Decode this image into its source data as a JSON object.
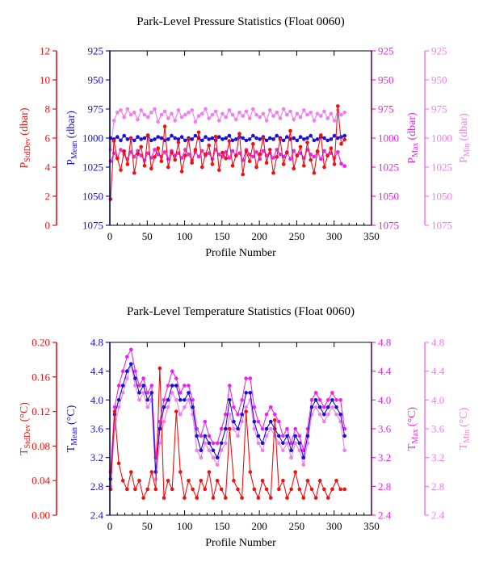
{
  "colors": {
    "stddev": "#ee1111",
    "mean": "#1a10d6",
    "max": "#ee22ee",
    "min": "#f07ef0",
    "frame": "#000000"
  },
  "chart_data": [
    {
      "type": "line",
      "title": "Park-Level Pressure Statistics (Float 0060)",
      "xlabel": "Profile Number",
      "xlim": [
        0,
        350
      ],
      "xticks": [
        "0",
        "50",
        "100",
        "150",
        "200",
        "250",
        "300",
        "350"
      ],
      "axes": [
        {
          "side": "left",
          "position": "outer",
          "main": "P",
          "sub": "StdDev",
          "unit": "(dbar)",
          "color_key": "stddev",
          "range": [
            0,
            12
          ],
          "reversed": false,
          "ticks": [
            "0",
            "2",
            "4",
            "6",
            "8",
            "10",
            "12"
          ]
        },
        {
          "side": "left",
          "position": "inner",
          "main": "P",
          "sub": "Mean",
          "unit": "(dbar)",
          "color_key": "mean",
          "range": [
            925,
            1075
          ],
          "reversed": true,
          "ticks": [
            "925",
            "950",
            "975",
            "1000",
            "1025",
            "1050",
            "1075"
          ]
        },
        {
          "side": "right",
          "position": "inner",
          "main": "P",
          "sub": "Max",
          "unit": "(dbar)",
          "color_key": "max",
          "range": [
            925,
            1075
          ],
          "reversed": true,
          "ticks": [
            "925",
            "950",
            "975",
            "1000",
            "1025",
            "1050",
            "1075"
          ]
        },
        {
          "side": "right",
          "position": "outer",
          "main": "P",
          "sub": "Min",
          "unit": "(dbar)",
          "color_key": "min",
          "range": [
            925,
            1075
          ],
          "reversed": true,
          "ticks": [
            "925",
            "950",
            "975",
            "1000",
            "1025",
            "1050",
            "1075"
          ]
        }
      ],
      "series": [
        {
          "axis": 3,
          "color_key": "min",
          "values": [
            1010,
            985,
            978,
            976,
            982,
            975,
            980,
            978,
            984,
            976,
            980,
            982,
            978,
            975,
            986,
            980,
            977,
            983,
            979,
            985,
            976,
            982,
            980,
            978,
            976,
            986,
            981,
            979,
            975,
            983,
            980,
            977,
            985,
            979,
            982,
            976,
            980,
            984,
            978,
            981,
            977,
            983,
            975,
            980,
            982,
            979,
            985,
            976,
            981,
            978,
            983,
            975,
            980,
            977,
            984,
            979,
            982,
            976,
            980,
            978,
            985,
            979,
            981,
            977,
            983,
            979,
            985,
            976,
            980,
            978
          ]
        },
        {
          "axis": 2,
          "color_key": "max",
          "values": [
            1020,
            1013,
            1017,
            1010,
            1014,
            1018,
            1012,
            1016,
            1011,
            1015,
            1019,
            1013,
            1017,
            1010,
            1014,
            1016,
            1012,
            1018,
            1011,
            1015,
            1013,
            1017,
            1010,
            1014,
            1019,
            1012,
            1016,
            1011,
            1015,
            1013,
            1018,
            1010,
            1014,
            1016,
            1012,
            1017,
            1011,
            1015,
            1013,
            1019,
            1010,
            1014,
            1016,
            1012,
            1018,
            1011,
            1015,
            1013,
            1017,
            1010,
            1014,
            1016,
            1012,
            1018,
            1011,
            1015,
            1013,
            1017,
            1010,
            1014,
            1016,
            1012,
            1018,
            1011,
            1015,
            1013,
            1017,
            1012,
            1022,
            1024
          ]
        },
        {
          "axis": 1,
          "color_key": "mean",
          "values": [
            1000,
            1001,
            999,
            1002,
            998,
            1001,
            1000,
            1002,
            999,
            1001,
            1000,
            998,
            1002,
            1001,
            999,
            1000,
            1002,
            1001,
            998,
            1000,
            1001,
            999,
            1002,
            1000,
            1001,
            998,
            1000,
            1002,
            999,
            1001,
            1000,
            1002,
            999,
            1001,
            1000,
            998,
            1002,
            1001,
            999,
            1000,
            1002,
            1001,
            998,
            1000,
            1001,
            999,
            1002,
            1000,
            1001,
            998,
            1000,
            1002,
            999,
            1001,
            1000,
            1002,
            999,
            1001,
            1000,
            998,
            1002,
            1001,
            999,
            1000,
            1002,
            1001,
            998,
            1000,
            999,
            998
          ]
        },
        {
          "axis": 0,
          "color_key": "stddev",
          "values": [
            1.8,
            5.8,
            4.6,
            3.8,
            5.1,
            4.2,
            6.0,
            3.6,
            4.9,
            5.4,
            4.1,
            6.2,
            3.9,
            4.7,
            5.3,
            4.4,
            6.8,
            4.0,
            5.0,
            4.5,
            5.7,
            3.7,
            4.8,
            5.9,
            4.3,
            5.2,
            6.4,
            4.0,
            4.9,
            5.5,
            4.2,
            6.1,
            3.8,
            5.0,
            4.6,
            5.8,
            4.1,
            4.8,
            6.3,
            3.5,
            5.1,
            4.4,
            5.6,
            4.0,
            4.9,
            6.0,
            4.3,
            5.2,
            3.6,
            4.7,
            5.9,
            4.2,
            5.0,
            6.5,
            3.9,
            4.8,
            5.4,
            4.1,
            5.7,
            4.5,
            3.6,
            5.1,
            6.2,
            4.0,
            4.8,
            5.3,
            4.2,
            8.2,
            5.6,
            5.9
          ]
        }
      ]
    },
    {
      "type": "line",
      "title": "Park-Level Temperature Statistics (Float 0060)",
      "xlabel": "Profile Number",
      "xlim": [
        0,
        350
      ],
      "xticks": [
        "0",
        "50",
        "100",
        "150",
        "200",
        "250",
        "300",
        "350"
      ],
      "axes": [
        {
          "side": "left",
          "position": "outer",
          "main": "T",
          "sub": "StdDev",
          "unit": "(°C)",
          "color_key": "stddev",
          "range": [
            0,
            0.2
          ],
          "reversed": false,
          "ticks": [
            "0.00",
            "0.04",
            "0.08",
            "0.12",
            "0.16",
            "0.20"
          ]
        },
        {
          "side": "left",
          "position": "inner",
          "main": "T",
          "sub": "Mean",
          "unit": "(°C)",
          "color_key": "mean",
          "range": [
            2.4,
            4.8
          ],
          "reversed": false,
          "ticks": [
            "2.4",
            "2.8",
            "3.2",
            "3.6",
            "4.0",
            "4.4",
            "4.8"
          ]
        },
        {
          "side": "right",
          "position": "inner",
          "main": "T",
          "sub": "Max",
          "unit": "(°C)",
          "color_key": "max",
          "range": [
            2.4,
            4.8
          ],
          "reversed": false,
          "ticks": [
            "2.4",
            "2.8",
            "3.2",
            "3.6",
            "4.0",
            "4.4",
            "4.8"
          ]
        },
        {
          "side": "right",
          "position": "outer",
          "main": "T",
          "sub": "Min",
          "unit": "(°C)",
          "color_key": "min",
          "range": [
            2.4,
            4.8
          ],
          "reversed": false,
          "ticks": [
            "2.4",
            "2.8",
            "3.2",
            "3.6",
            "4.0",
            "4.4",
            "4.8"
          ]
        }
      ],
      "series": [
        {
          "axis": 3,
          "color_key": "min",
          "values": [
            2.8,
            3.6,
            3.9,
            4.1,
            4.3,
            4.5,
            4.2,
            4.0,
            4.1,
            3.9,
            4.0,
            2.9,
            3.4,
            3.7,
            3.9,
            4.1,
            4.0,
            3.8,
            3.9,
            4.0,
            3.8,
            3.3,
            3.2,
            3.4,
            3.3,
            3.2,
            3.1,
            3.3,
            3.4,
            3.8,
            3.6,
            3.5,
            3.7,
            3.9,
            4.0,
            3.6,
            3.4,
            3.3,
            3.5,
            3.6,
            3.5,
            3.4,
            3.3,
            3.4,
            3.2,
            3.4,
            3.3,
            3.1,
            3.4,
            3.8,
            3.9,
            3.8,
            3.7,
            3.8,
            3.9,
            3.8,
            3.7,
            3.3
          ]
        },
        {
          "axis": 2,
          "color_key": "max",
          "values": [
            3.0,
            3.9,
            4.2,
            4.4,
            4.6,
            4.7,
            4.4,
            4.2,
            4.3,
            4.1,
            4.2,
            3.2,
            3.7,
            4.0,
            4.2,
            4.4,
            4.3,
            4.1,
            4.2,
            4.2,
            4.0,
            3.6,
            3.5,
            3.7,
            3.5,
            3.4,
            3.4,
            3.6,
            3.8,
            4.2,
            3.9,
            3.8,
            4.0,
            4.3,
            4.3,
            3.9,
            3.7,
            3.6,
            3.8,
            3.9,
            3.8,
            3.7,
            3.5,
            3.6,
            3.4,
            3.6,
            3.5,
            3.3,
            3.6,
            4.0,
            4.1,
            4.0,
            3.9,
            4.0,
            4.1,
            4.0,
            4.0,
            3.6
          ]
        },
        {
          "axis": 1,
          "color_key": "mean",
          "values": [
            2.9,
            3.8,
            4.0,
            4.2,
            4.4,
            4.5,
            4.3,
            4.1,
            4.2,
            4.0,
            4.1,
            3.0,
            3.6,
            3.9,
            4.0,
            4.2,
            4.2,
            4.0,
            4.0,
            4.1,
            3.9,
            3.5,
            3.3,
            3.5,
            3.4,
            3.3,
            3.2,
            3.4,
            3.6,
            4.0,
            3.7,
            3.6,
            3.8,
            4.1,
            4.1,
            3.7,
            3.5,
            3.4,
            3.6,
            3.7,
            3.6,
            3.5,
            3.4,
            3.5,
            3.3,
            3.5,
            3.4,
            3.2,
            3.5,
            3.9,
            4.0,
            3.9,
            3.8,
            3.9,
            4.0,
            3.9,
            3.8,
            3.5
          ]
        },
        {
          "axis": 0,
          "color_key": "stddev",
          "values": [
            0.03,
            0.12,
            0.06,
            0.04,
            0.03,
            0.05,
            0.03,
            0.04,
            0.02,
            0.03,
            0.05,
            0.03,
            0.17,
            0.02,
            0.04,
            0.03,
            0.12,
            0.05,
            0.02,
            0.04,
            0.03,
            0.02,
            0.04,
            0.03,
            0.05,
            0.02,
            0.04,
            0.03,
            0.02,
            0.1,
            0.04,
            0.03,
            0.02,
            0.12,
            0.05,
            0.03,
            0.02,
            0.04,
            0.03,
            0.02,
            0.11,
            0.03,
            0.04,
            0.02,
            0.03,
            0.05,
            0.03,
            0.02,
            0.04,
            0.03,
            0.02,
            0.04,
            0.03,
            0.02,
            0.03,
            0.04,
            0.03,
            0.03
          ]
        }
      ]
    }
  ]
}
